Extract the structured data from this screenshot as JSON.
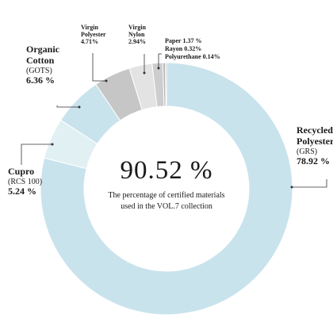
{
  "chart_data": {
    "type": "pie",
    "variant": "donut",
    "center_value": "90.52 %",
    "center_caption_lines": [
      "The percentage of certified materials",
      "used in the VOL.7 collection"
    ],
    "segments": [
      {
        "name_lines": [
          "Recycled",
          "Polyester"
        ],
        "cert": "(GRS)",
        "value_label": "78.92 %",
        "value": 78.92,
        "color": "#c9e3ed"
      },
      {
        "name_lines": [
          "Cupro"
        ],
        "cert": "(RCS 100)",
        "value_label": "5.24 %",
        "value": 5.24,
        "color": "#e1f0f3"
      },
      {
        "name_lines": [
          "Organic",
          "Cotton"
        ],
        "cert": "(GOTS)",
        "value_label": "6.36 %",
        "value": 6.36,
        "color": "#c9e3ed"
      },
      {
        "name_lines": [
          "Virgin",
          "Polyester"
        ],
        "value_label": "4.71%",
        "value": 4.71,
        "color": "#c6c6c6"
      },
      {
        "name_lines": [
          "Virgin",
          "Nylon"
        ],
        "value_label": "2.94%",
        "value": 2.94,
        "color": "#e3e3e3"
      },
      {
        "name_lines": [
          "Paper"
        ],
        "value_label": "1.37 %",
        "value": 1.37,
        "color": "#cdcdcd"
      },
      {
        "name_lines": [
          "Rayon"
        ],
        "value_label": "0.32%",
        "value": 0.32,
        "color": "#b5b5b5"
      },
      {
        "name_lines": [
          "Polyurethane"
        ],
        "value_label": "0.14%",
        "value": 0.14,
        "color": "#9a9a9a"
      }
    ]
  }
}
